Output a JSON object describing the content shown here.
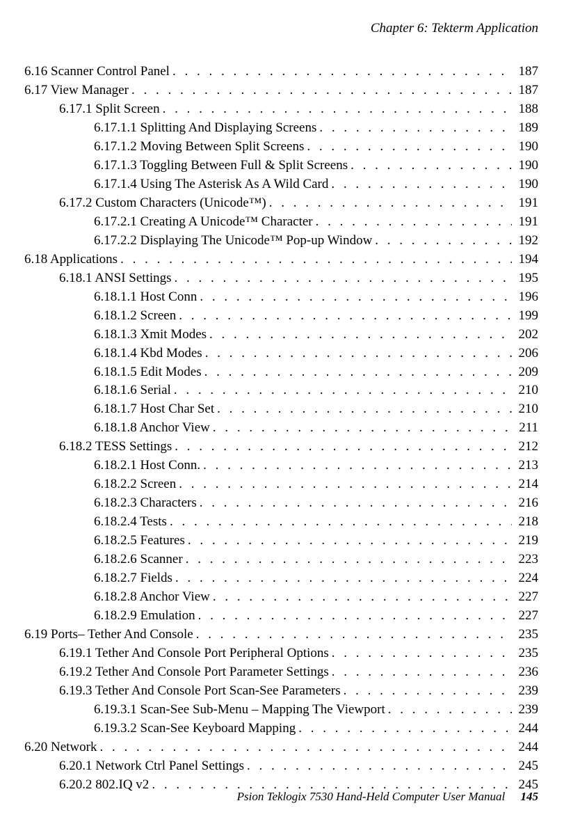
{
  "header": {
    "chapter": "Chapter 6: Tekterm Application"
  },
  "toc": [
    {
      "level": 0,
      "number": "6.16",
      "title": "Scanner Control Panel",
      "page": "187"
    },
    {
      "level": 0,
      "number": "6.17",
      "title": "View Manager",
      "page": "187"
    },
    {
      "level": 1,
      "number": "6.17.1",
      "title": "Split Screen",
      "page": "188"
    },
    {
      "level": 2,
      "number": "6.17.1.1",
      "title": "Splitting And Displaying Screens",
      "page": "189"
    },
    {
      "level": 2,
      "number": "6.17.1.2",
      "title": "Moving Between Split Screens",
      "page": "190"
    },
    {
      "level": 2,
      "number": "6.17.1.3",
      "title": "Toggling Between Full & Split Screens",
      "page": "190"
    },
    {
      "level": 2,
      "number": "6.17.1.4",
      "title": "Using The Asterisk As A Wild Card",
      "page": "190"
    },
    {
      "level": 1,
      "number": "6.17.2",
      "title": "Custom Characters (Unicode™)",
      "page": "191"
    },
    {
      "level": 2,
      "number": "6.17.2.1",
      "title": "Creating A Unicode™ Character",
      "page": "191"
    },
    {
      "level": 2,
      "number": "6.17.2.2",
      "title": "Displaying The Unicode™ Pop-up Window",
      "page": "192"
    },
    {
      "level": 0,
      "number": "6.18",
      "title": "Applications",
      "page": "194"
    },
    {
      "level": 1,
      "number": "6.18.1",
      "title": "ANSI Settings",
      "page": "195"
    },
    {
      "level": 2,
      "number": "6.18.1.1",
      "title": "Host Conn",
      "page": "196"
    },
    {
      "level": 2,
      "number": "6.18.1.2",
      "title": "Screen",
      "page": "199"
    },
    {
      "level": 2,
      "number": "6.18.1.3",
      "title": "Xmit Modes",
      "page": "202"
    },
    {
      "level": 2,
      "number": "6.18.1.4",
      "title": "Kbd Modes",
      "page": "206"
    },
    {
      "level": 2,
      "number": "6.18.1.5",
      "title": "Edit Modes",
      "page": "209"
    },
    {
      "level": 2,
      "number": "6.18.1.6",
      "title": "Serial",
      "page": "210"
    },
    {
      "level": 2,
      "number": "6.18.1.7",
      "title": "Host Char Set",
      "page": "210"
    },
    {
      "level": 2,
      "number": "6.18.1.8",
      "title": "Anchor View",
      "page": "211"
    },
    {
      "level": 1,
      "number": "6.18.2",
      "title": "TESS Settings",
      "page": "212"
    },
    {
      "level": 2,
      "number": "6.18.2.1",
      "title": "Host Conn.",
      "page": "213"
    },
    {
      "level": 2,
      "number": "6.18.2.2",
      "title": "Screen",
      "page": "214"
    },
    {
      "level": 2,
      "number": "6.18.2.3",
      "title": "Characters",
      "page": "216"
    },
    {
      "level": 2,
      "number": "6.18.2.4",
      "title": "Tests",
      "page": "218"
    },
    {
      "level": 2,
      "number": "6.18.2.5",
      "title": "Features",
      "page": "219"
    },
    {
      "level": 2,
      "number": "6.18.2.6",
      "title": "Scanner",
      "page": "223"
    },
    {
      "level": 2,
      "number": "6.18.2.7",
      "title": "Fields",
      "page": "224"
    },
    {
      "level": 2,
      "number": "6.18.2.8",
      "title": "Anchor View",
      "page": "227"
    },
    {
      "level": 2,
      "number": "6.18.2.9",
      "title": "Emulation",
      "page": "227"
    },
    {
      "level": 0,
      "number": "6.19",
      "title": "Ports– Tether And Console",
      "page": "235"
    },
    {
      "level": 1,
      "number": "6.19.1",
      "title": "Tether And Console Port Peripheral Options",
      "page": "235"
    },
    {
      "level": 1,
      "number": "6.19.2",
      "title": "Tether And Console Port Parameter Settings",
      "page": "236"
    },
    {
      "level": 1,
      "number": "6.19.3",
      "title": "Tether And Console Port Scan-See Parameters",
      "page": "239"
    },
    {
      "level": 2,
      "number": "6.19.3.1",
      "title": "Scan-See Sub-Menu – Mapping The Viewport",
      "page": "239"
    },
    {
      "level": 2,
      "number": "6.19.3.2",
      "title": "Scan-See Keyboard Mapping",
      "page": "244"
    },
    {
      "level": 0,
      "number": "6.20",
      "title": "Network",
      "page": "244"
    },
    {
      "level": 1,
      "number": "6.20.1",
      "title": "Network Ctrl Panel Settings",
      "page": "245"
    },
    {
      "level": 1,
      "number": "6.20.2",
      "title": "802.IQ v2",
      "page": "245"
    }
  ],
  "footer": {
    "manual": "Psion Teklogix 7530 Hand-Held Computer User Manual",
    "page": "145"
  }
}
